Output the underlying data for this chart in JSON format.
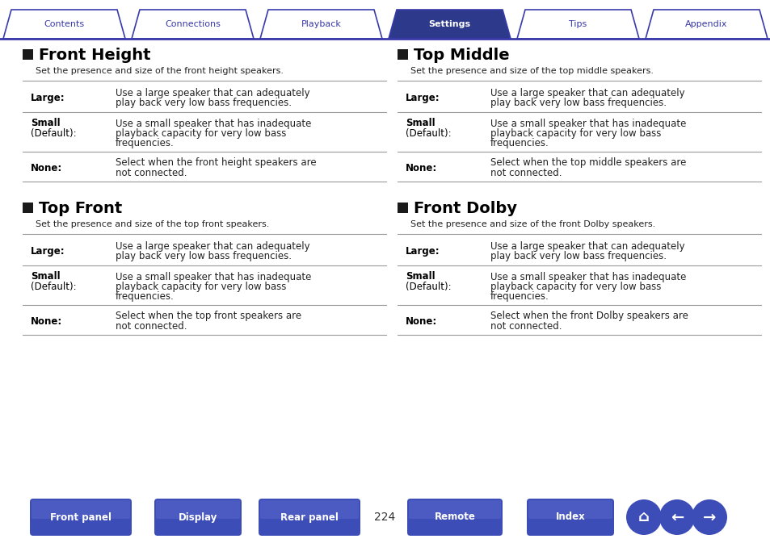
{
  "bg_color": "#ffffff",
  "tab_color_active": "#2d3a8c",
  "tab_color_inactive": "#ffffff",
  "tab_border_color": "#3a3aaa",
  "tabs": [
    "Contents",
    "Connections",
    "Playback",
    "Settings",
    "Tips",
    "Appendix"
  ],
  "active_tab": 3,
  "section_square_color": "#1a1a1a",
  "section_title_color": "#000000",
  "body_text_color": "#222222",
  "table_line_color": "#999999",
  "page_number": "224",
  "bottom_buttons": [
    "Front panel",
    "Display",
    "Rear panel",
    "Remote",
    "Index"
  ],
  "bottom_btn_color_top": "#6070cc",
  "bottom_btn_color_bot": "#2d3a8c",
  "sections": [
    {
      "title": "Front Height",
      "subtitle": "Set the presence and size of the front height speakers.",
      "rows": [
        {
          "label": "Large:",
          "label2": null,
          "text": "Use a large speaker that can adequately\nplay back very low bass frequencies."
        },
        {
          "label": "Small",
          "label2": "(Default):",
          "text": "Use a small speaker that has inadequate\nplayback capacity for very low bass\nfrequencies."
        },
        {
          "label": "None:",
          "label2": null,
          "text": "Select when the front height speakers are\nnot connected."
        }
      ]
    },
    {
      "title": "Top Front",
      "subtitle": "Set the presence and size of the top front speakers.",
      "rows": [
        {
          "label": "Large:",
          "label2": null,
          "text": "Use a large speaker that can adequately\nplay back very low bass frequencies."
        },
        {
          "label": "Small",
          "label2": "(Default):",
          "text": "Use a small speaker that has inadequate\nplayback capacity for very low bass\nfrequencies."
        },
        {
          "label": "None:",
          "label2": null,
          "text": "Select when the top front speakers are\nnot connected."
        }
      ]
    },
    {
      "title": "Top Middle",
      "subtitle": "Set the presence and size of the top middle speakers.",
      "rows": [
        {
          "label": "Large:",
          "label2": null,
          "text": "Use a large speaker that can adequately\nplay back very low bass frequencies."
        },
        {
          "label": "Small",
          "label2": "(Default):",
          "text": "Use a small speaker that has inadequate\nplayback capacity for very low bass\nfrequencies."
        },
        {
          "label": "None:",
          "label2": null,
          "text": "Select when the top middle speakers are\nnot connected."
        }
      ]
    },
    {
      "title": "Front Dolby",
      "subtitle": "Set the presence and size of the front Dolby speakers.",
      "rows": [
        {
          "label": "Large:",
          "label2": null,
          "text": "Use a large speaker that can adequately\nplay back very low bass frequencies."
        },
        {
          "label": "Small",
          "label2": "(Default):",
          "text": "Use a small speaker that has inadequate\nplayback capacity for very low bass\nfrequencies."
        },
        {
          "label": "None:",
          "label2": null,
          "text": "Select when the front Dolby speakers are\nnot connected."
        }
      ]
    }
  ]
}
